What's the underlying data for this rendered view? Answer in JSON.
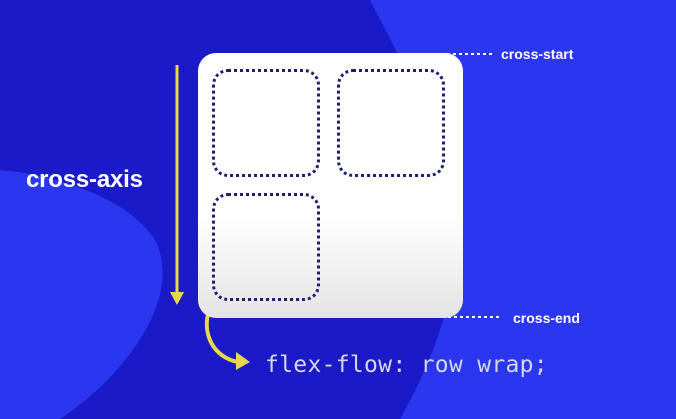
{
  "diagram": {
    "axis_label": "cross-axis",
    "start_label": "cross-start",
    "end_label": "cross-end",
    "code": "flex-flow: row wrap;",
    "flex_items": 3
  },
  "colors": {
    "background": "#1a1ac8",
    "shape_light": "#2a36f0",
    "container": "#ffffff",
    "item_border": "#1c1e6e",
    "arrow": "#e8d84a",
    "guide": "#ffffff"
  }
}
